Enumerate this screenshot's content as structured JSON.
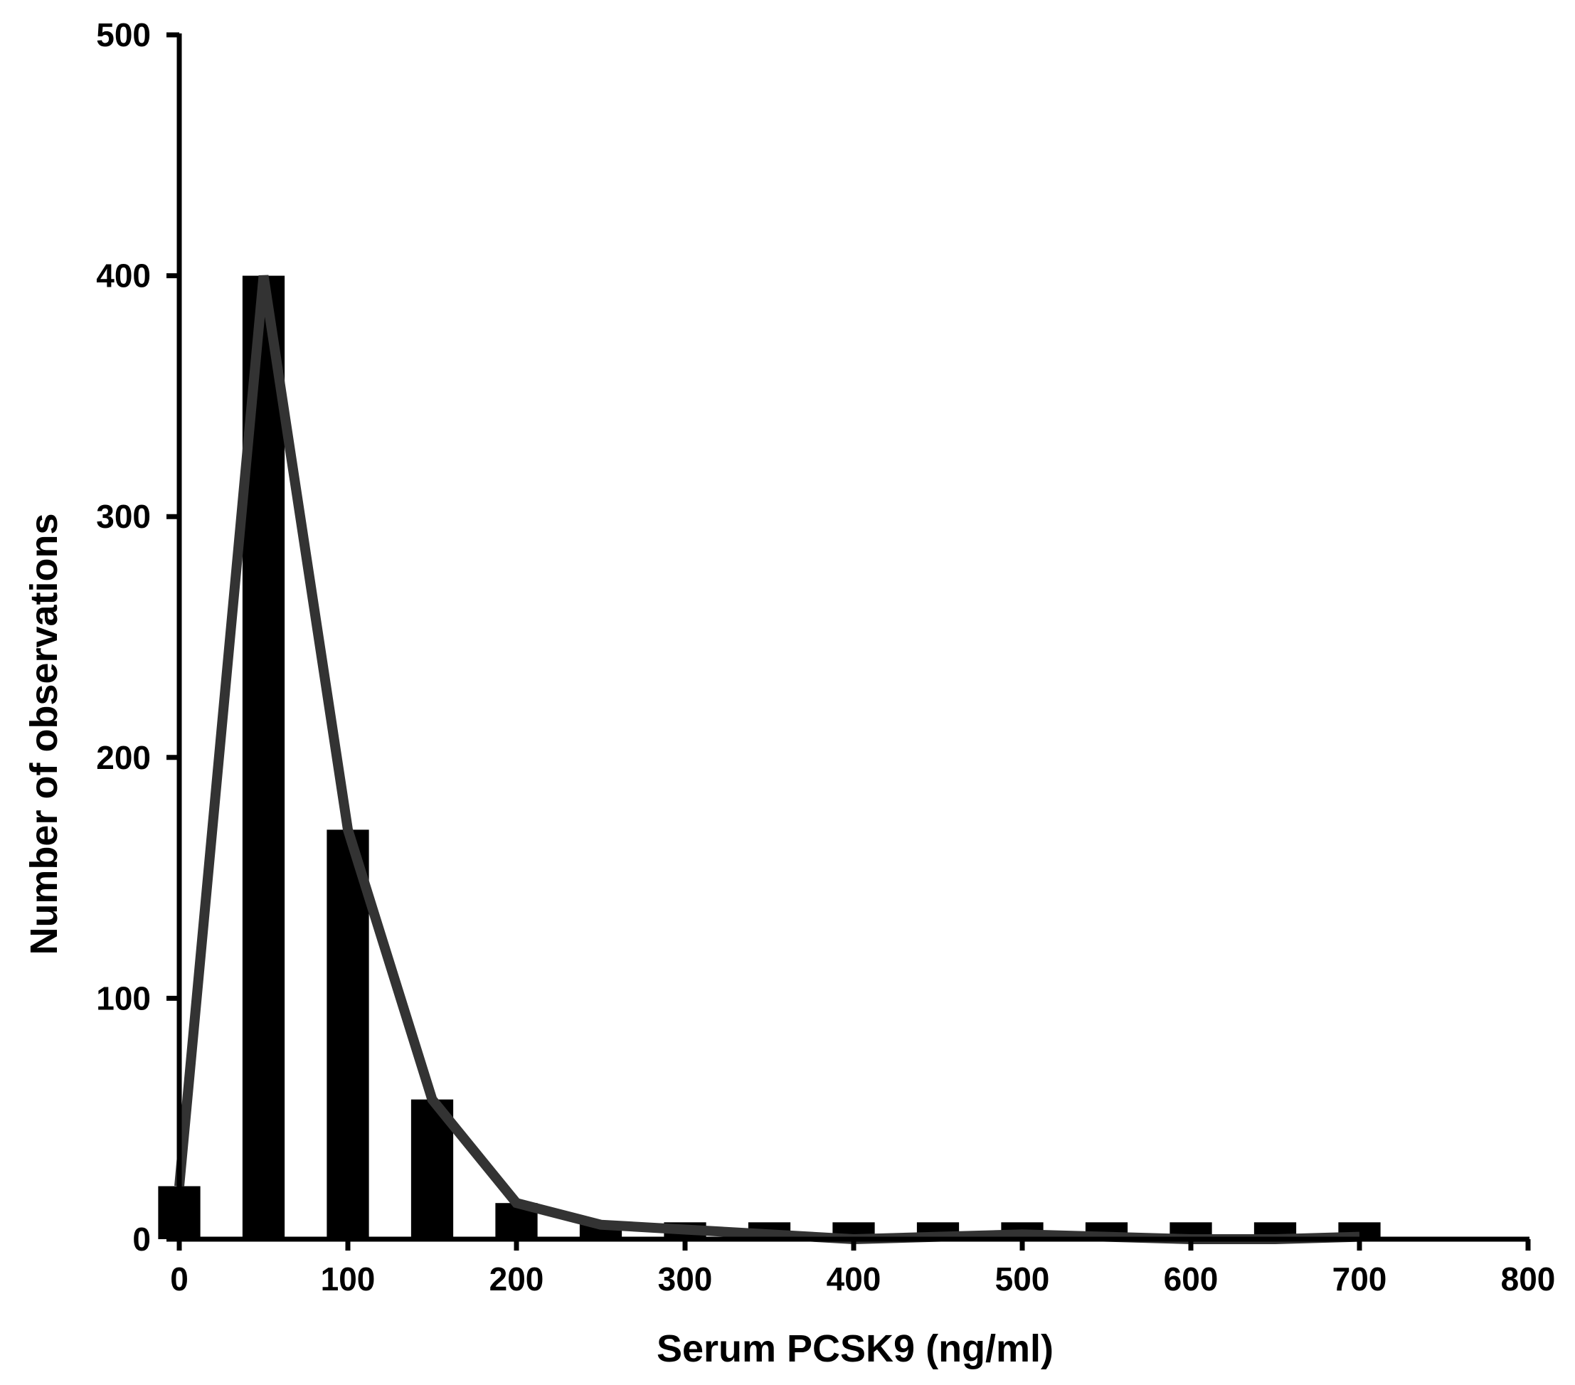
{
  "chart_data": {
    "type": "bar",
    "title": "",
    "xlabel": "Serum PCSK9 (ng/ml)",
    "ylabel": "Number of observations",
    "xlim": [
      0,
      800
    ],
    "ylim": [
      0,
      500
    ],
    "x_ticks": [
      0,
      100,
      200,
      300,
      400,
      500,
      600,
      700,
      800
    ],
    "y_ticks": [
      0,
      100,
      200,
      300,
      400,
      500
    ],
    "bin_width": 25,
    "grid": false,
    "legend": "none",
    "colors": {
      "bars": "#000000",
      "line": "#333333",
      "axes": "#000000"
    },
    "series": [
      {
        "type": "bar",
        "x": [
          0,
          50,
          100,
          150,
          200,
          250,
          300,
          350,
          400,
          450,
          500,
          550,
          600,
          650,
          700
        ],
        "values": [
          22,
          400,
          170,
          58,
          15,
          7,
          7,
          7,
          7,
          7,
          7,
          7,
          7,
          7,
          7
        ]
      },
      {
        "type": "line",
        "x": [
          0,
          50,
          100,
          150,
          200,
          250,
          300,
          350,
          400,
          450,
          500,
          550,
          600,
          650,
          700
        ],
        "values": [
          22,
          400,
          170,
          58,
          15,
          6,
          4,
          2,
          0,
          1,
          2,
          1,
          0,
          0,
          1
        ]
      }
    ]
  }
}
